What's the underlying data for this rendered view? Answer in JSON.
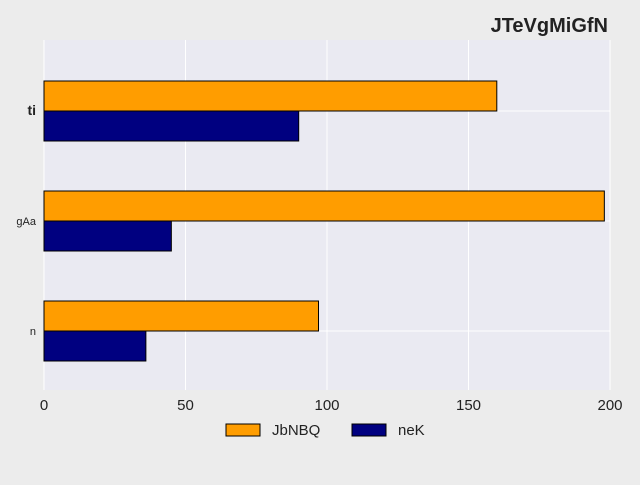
{
  "colors": {
    "figure_bg": "#ececec",
    "plot_bg": "#eaeaf2",
    "grid": "#ffffff",
    "bar_edge": "#000000"
  },
  "chart_data": {
    "type": "bar",
    "orientation": "horizontal",
    "title": "JTeVgMiGfN",
    "xlabel": "",
    "ylabel": "",
    "categories": [
      "n",
      "gAa",
      "ti"
    ],
    "series": [
      {
        "name": "JbNBQ",
        "color": "#ff9d00",
        "values": [
          97,
          198,
          160
        ]
      },
      {
        "name": "neK",
        "color": "#000080",
        "values": [
          36,
          45,
          90
        ]
      }
    ],
    "xlim": [
      0,
      200
    ],
    "xticks": [
      0,
      50,
      100,
      150,
      200
    ],
    "grid": true,
    "legend_position": "bottom"
  }
}
